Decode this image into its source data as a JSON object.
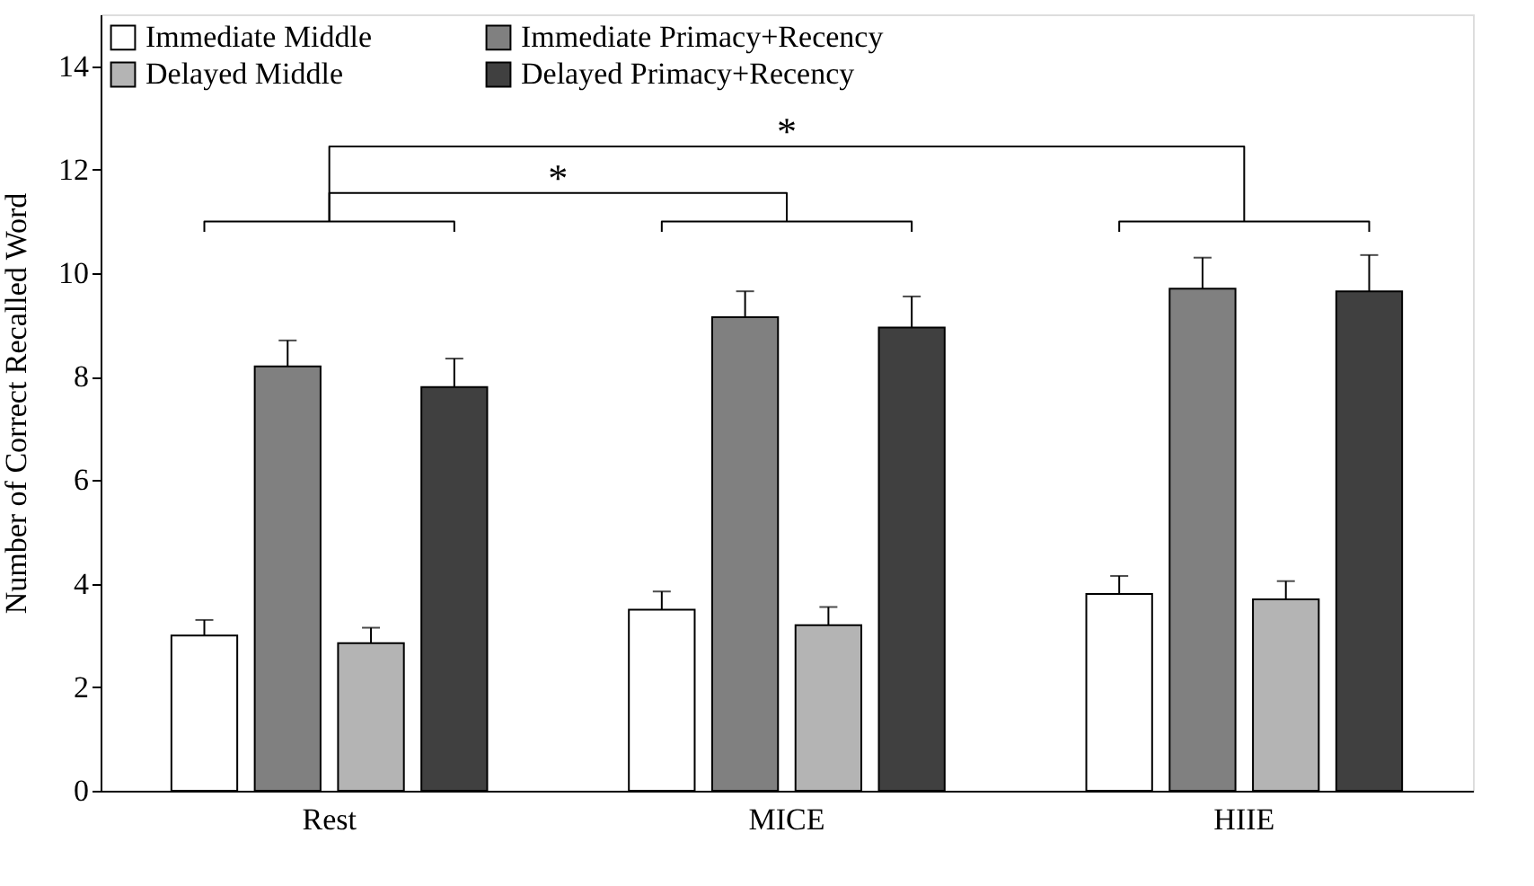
{
  "chart_data": {
    "type": "bar",
    "ylabel": "Number of Correct Recalled Word",
    "categories": [
      "Rest",
      "MICE",
      "HIIE"
    ],
    "series": [
      {
        "name": "Immediate Middle",
        "color": "#ffffff",
        "values": [
          3.0,
          3.5,
          3.8
        ],
        "errors": [
          0.3,
          0.35,
          0.35
        ]
      },
      {
        "name": "Immediate Primacy+Recency",
        "color": "#808080",
        "values": [
          8.2,
          9.15,
          9.7
        ],
        "errors": [
          0.5,
          0.5,
          0.6
        ]
      },
      {
        "name": "Delayed Middle",
        "color": "#b4b4b4",
        "values": [
          2.85,
          3.2,
          3.7
        ],
        "errors": [
          0.3,
          0.35,
          0.35
        ]
      },
      {
        "name": "Delayed Primacy+Recency",
        "color": "#404040",
        "values": [
          7.8,
          8.95,
          9.65
        ],
        "errors": [
          0.55,
          0.6,
          0.7
        ]
      }
    ],
    "ylim": [
      0,
      15
    ],
    "yticks": [
      0,
      2,
      4,
      6,
      8,
      10,
      12,
      14
    ],
    "grid": false,
    "legend": "top left",
    "annotations": [
      "*",
      "*"
    ]
  }
}
